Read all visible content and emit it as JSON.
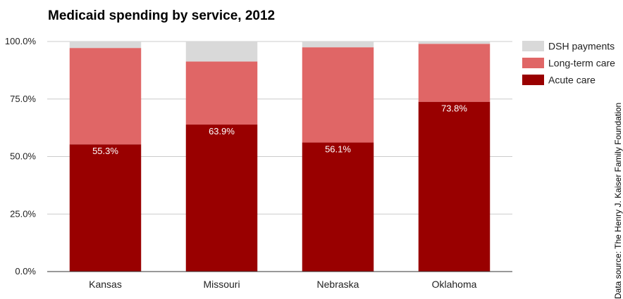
{
  "chart_data": {
    "type": "bar",
    "stacked": true,
    "title": "Medicaid spending by service, 2012",
    "categories": [
      "Kansas",
      "Missouri",
      "Nebraska",
      "Oklahoma"
    ],
    "series": [
      {
        "name": "Acute care",
        "color": "#990000",
        "values": [
          55.3,
          63.9,
          56.1,
          73.8
        ],
        "labels": [
          "55.3%",
          "63.9%",
          "56.1%",
          "73.8%"
        ]
      },
      {
        "name": "Long-term care",
        "color": "#e06666",
        "values": [
          41.9,
          27.4,
          41.4,
          25.2
        ]
      },
      {
        "name": "DSH payments",
        "color": "#d9d9d9",
        "values": [
          2.8,
          8.7,
          2.5,
          1.0
        ]
      }
    ],
    "legend": {
      "position": "right",
      "items": [
        {
          "name": "DSH payments",
          "color": "#d9d9d9"
        },
        {
          "name": "Long-term care",
          "color": "#e06666"
        },
        {
          "name": "Acute care",
          "color": "#990000"
        }
      ]
    },
    "yticks": [
      "0.0%",
      "25.0%",
      "50.0%",
      "75.0%",
      "100.0%"
    ],
    "ylim": [
      0,
      100
    ],
    "grid": true,
    "source": "Data source: The Henry J. Kaiser Family Foundation"
  }
}
